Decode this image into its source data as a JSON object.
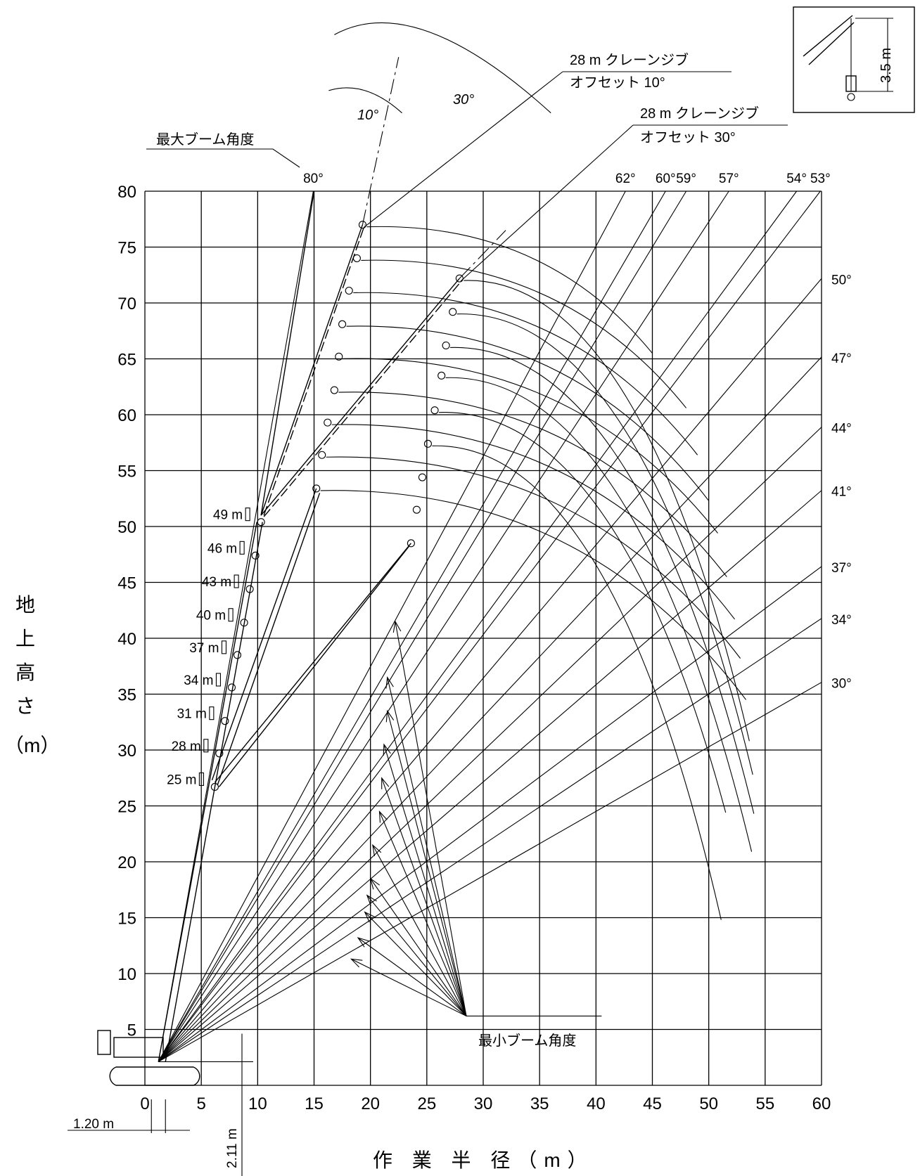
{
  "chart_data": {
    "type": "line",
    "title": "",
    "xlabel": "作 業 半 径（m）",
    "ylabel": [
      "地",
      "上",
      "高",
      "さ",
      "（m）"
    ],
    "xlim": [
      0,
      60
    ],
    "ylim": [
      0,
      80
    ],
    "grid": true,
    "x_ticks": [
      "0",
      "5",
      "10",
      "15",
      "20",
      "25",
      "30",
      "35",
      "40",
      "45",
      "50",
      "55",
      "60"
    ],
    "y_ticks": [
      "5",
      "10",
      "15",
      "20",
      "25",
      "30",
      "35",
      "40",
      "45",
      "50",
      "55",
      "60",
      "65",
      "70",
      "75",
      "80"
    ],
    "boom_pivot": [
      1.2,
      2.11
    ],
    "boom_lengths": [
      {
        "label": "25 m",
        "tip": [
          6.2,
          26.7
        ]
      },
      {
        "label": "28 m",
        "tip": [
          6.6,
          29.7
        ]
      },
      {
        "label": "31 m",
        "tip": [
          7.1,
          32.6
        ]
      },
      {
        "label": "34 m",
        "tip": [
          7.7,
          35.6
        ]
      },
      {
        "label": "37 m",
        "tip": [
          8.2,
          38.5
        ]
      },
      {
        "label": "40 m",
        "tip": [
          8.8,
          41.4
        ]
      },
      {
        "label": "43 m",
        "tip": [
          9.3,
          44.4
        ]
      },
      {
        "label": "46 m",
        "tip": [
          9.8,
          47.4
        ]
      },
      {
        "label": "49 m",
        "tip": [
          10.3,
          50.4
        ]
      }
    ],
    "boom_angle_labels": [
      {
        "label": "80°",
        "deg": 80
      },
      {
        "label": "62°",
        "deg": 62
      },
      {
        "label": "60°",
        "deg": 60
      },
      {
        "label": "59°",
        "deg": 59
      },
      {
        "label": "57°",
        "deg": 57
      },
      {
        "label": "54°",
        "deg": 54
      },
      {
        "label": "53°",
        "deg": 53
      },
      {
        "label": "50°",
        "deg": 50
      },
      {
        "label": "47°",
        "deg": 47
      },
      {
        "label": "44°",
        "deg": 44
      },
      {
        "label": "41°",
        "deg": 41
      },
      {
        "label": "37°",
        "deg": 37
      },
      {
        "label": "34°",
        "deg": 34
      },
      {
        "label": "30°",
        "deg": 30
      }
    ],
    "jib_tips_offset10": [
      [
        19.3,
        77
      ],
      [
        18.8,
        74
      ],
      [
        18.1,
        71.1
      ],
      [
        17.5,
        68.1
      ],
      [
        17.2,
        65.2
      ],
      [
        16.8,
        62.2
      ],
      [
        16.2,
        59.3
      ],
      [
        15.7,
        56.4
      ],
      [
        15.2,
        53.4
      ]
    ],
    "jib_tips_offset30": [
      [
        27.9,
        72.2
      ],
      [
        27.3,
        69.2
      ],
      [
        26.7,
        66.2
      ],
      [
        26.3,
        63.5
      ],
      [
        25.7,
        60.4
      ],
      [
        25.1,
        57.4
      ],
      [
        24.6,
        54.4
      ],
      [
        24.1,
        51.5
      ],
      [
        23.6,
        48.5
      ]
    ],
    "jib_curve_ends": [
      [
        45,
        65.5
      ],
      [
        48,
        60.6
      ],
      [
        49,
        56.4
      ],
      [
        50,
        52.3
      ],
      [
        50.8,
        49.4
      ],
      [
        51.6,
        45.5
      ],
      [
        52.3,
        41.7
      ],
      [
        52.8,
        38.2
      ],
      [
        53.3,
        34.5
      ],
      [
        53.6,
        30.8
      ],
      [
        53.9,
        27.8
      ],
      [
        54,
        24.3
      ],
      [
        53.8,
        20.9
      ],
      [
        51.5,
        24.4
      ],
      [
        51.1,
        14.8
      ]
    ],
    "annotations": {
      "max_boom_angle": "最大ブーム角度",
      "min_boom_angle": "最小ブーム角度",
      "jib_10_line1": "28 m クレーンジブ",
      "jib_10_line2": "オフセット 10°",
      "jib_30_line1": "28 m クレーンジブ",
      "jib_30_line2": "オフセット 30°",
      "arc_10": "10°",
      "arc_30": "30°",
      "inset_height": "3.5 m",
      "dim_x": "1.20 m",
      "dim_y": "2.11 m"
    }
  }
}
